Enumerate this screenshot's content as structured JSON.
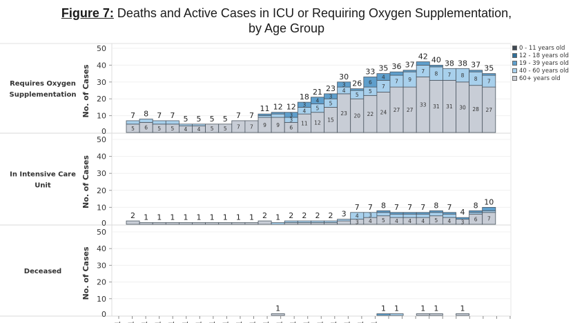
{
  "title": {
    "figure_label": "Figure 7:",
    "text": " Deaths and Active Cases in ICU or Requiring Oxygen Supplementation,",
    "line2": "by Age Group"
  },
  "colors": {
    "0-11": "#3f4a55",
    "12-18": "#2f6e98",
    "19-39": "#5f9fcc",
    "40-60": "#a8d0ec",
    "60+": "#c8cdd6",
    "border": "#4a5560"
  },
  "legend": [
    {
      "key": "0-11",
      "label": "0 - 11 years old"
    },
    {
      "key": "12-18",
      "label": "12 - 18 years old"
    },
    {
      "key": "19-39",
      "label": "19 - 39 years old"
    },
    {
      "key": "40-60",
      "label": "40 - 60 years old"
    },
    {
      "key": "60+",
      "label": "60+ years old"
    }
  ],
  "chart_data": {
    "type": "bar",
    "stacked": true,
    "title": "Figure 7: Deaths and Active Cases in ICU or Requiring Oxygen Supplementation, by Age Group",
    "ylabel": "No. of Cases",
    "ylim": [
      0,
      50
    ],
    "yticks": [
      0,
      10,
      20,
      30,
      40,
      50
    ],
    "stack_order": [
      "60+",
      "40-60",
      "19-39",
      "12-18",
      "0-11"
    ],
    "x_tick_count": 30,
    "x_tick_labels_visible": "cut off at bottom edge (dates partially visible)",
    "panels": [
      {
        "name": "Requires Oxygen Supplementation",
        "totals": [
          7,
          8,
          7,
          7,
          5,
          5,
          5,
          5,
          7,
          7,
          11,
          12,
          12,
          18,
          21,
          23,
          30,
          26,
          33,
          35,
          36,
          37,
          42,
          40,
          38,
          38,
          37,
          35
        ],
        "series": [
          {
            "name": "60+ years old",
            "key": "60+",
            "values": [
              5,
              6,
              5,
              5,
              4,
              4,
              5,
              5,
              7,
              7,
              9,
              9,
              6,
              11,
              12,
              15,
              23,
              20,
              22,
              24,
              27,
              27,
              33,
              31,
              31,
              30,
              28,
              27
            ]
          },
          {
            "name": "40 - 60 years old",
            "key": "40-60",
            "values": [
              2,
              2,
              2,
              2,
              1,
              1,
              0,
              0,
              0,
              0,
              1,
              2,
              3,
              4,
              5,
              5,
              4,
              5,
              5,
              7,
              7,
              9,
              7,
              8,
              7,
              8,
              8,
              7
            ]
          },
          {
            "name": "19 - 39 years old",
            "key": "19-39",
            "values": [
              0,
              0,
              0,
              0,
              0,
              0,
              0,
              0,
              0,
              0,
              1,
              1,
              3,
              3,
              4,
              3,
              3,
              1,
              6,
              4,
              2,
              1,
              2,
              1,
              0,
              0,
              1,
              1
            ]
          },
          {
            "name": "12 - 18 years old",
            "key": "12-18",
            "values": [
              0,
              0,
              0,
              0,
              0,
              0,
              0,
              0,
              0,
              0,
              0,
              0,
              0,
              0,
              0,
              0,
              0,
              0,
              0,
              0,
              0,
              0,
              0,
              0,
              0,
              0,
              0,
              0
            ]
          },
          {
            "name": "0 - 11 years old",
            "key": "0-11",
            "values": [
              0,
              0,
              0,
              0,
              0,
              0,
              0,
              0,
              0,
              0,
              0,
              0,
              0,
              0,
              0,
              0,
              0,
              0,
              0,
              0,
              0,
              0,
              0,
              0,
              0,
              0,
              0,
              0
            ]
          }
        ]
      },
      {
        "name": "In Intensive Care Unit",
        "totals": [
          2,
          1,
          1,
          1,
          1,
          1,
          1,
          1,
          1,
          1,
          2,
          1,
          2,
          2,
          2,
          2,
          3,
          7,
          7,
          8,
          7,
          7,
          7,
          8,
          7,
          4,
          8,
          10
        ],
        "series": [
          {
            "name": "60+ years old",
            "key": "60+",
            "values": [
              2,
              1,
              1,
              1,
              1,
              1,
              1,
              1,
              1,
              1,
              2,
              0,
              1,
              1,
              1,
              1,
              2,
              3,
              4,
              5,
              4,
              4,
              4,
              5,
              4,
              3,
              6,
              7
            ]
          },
          {
            "name": "40 - 60 years old",
            "key": "40-60",
            "values": [
              0,
              0,
              0,
              0,
              0,
              0,
              0,
              0,
              0,
              0,
              0,
              1,
              1,
              1,
              1,
              1,
              1,
              4,
              3,
              2,
              2,
              2,
              2,
              2,
              2,
              0,
              1,
              1
            ]
          },
          {
            "name": "19 - 39 years old",
            "key": "19-39",
            "values": [
              0,
              0,
              0,
              0,
              0,
              0,
              0,
              0,
              0,
              0,
              0,
              0,
              0,
              0,
              0,
              0,
              0,
              0,
              0,
              1,
              1,
              1,
              1,
              1,
              1,
              1,
              1,
              2
            ]
          },
          {
            "name": "12 - 18 years old",
            "key": "12-18",
            "values": [
              0,
              0,
              0,
              0,
              0,
              0,
              0,
              0,
              0,
              0,
              0,
              0,
              0,
              0,
              0,
              0,
              0,
              0,
              0,
              0,
              0,
              0,
              0,
              0,
              0,
              0,
              0,
              0
            ]
          },
          {
            "name": "0 - 11 years old",
            "key": "0-11",
            "values": [
              0,
              0,
              0,
              0,
              0,
              0,
              0,
              0,
              0,
              0,
              0,
              0,
              0,
              0,
              0,
              0,
              0,
              0,
              0,
              0,
              0,
              0,
              0,
              0,
              0,
              0,
              0,
              0
            ]
          }
        ]
      },
      {
        "name": "Deceased",
        "totals": [
          0,
          0,
          0,
          0,
          0,
          0,
          0,
          0,
          0,
          0,
          0,
          1,
          0,
          0,
          0,
          0,
          0,
          0,
          0,
          1,
          1,
          0,
          1,
          1,
          0,
          1,
          0,
          0
        ],
        "series": [
          {
            "name": "60+ years old",
            "key": "60+",
            "values": [
              0,
              0,
              0,
              0,
              0,
              0,
              0,
              0,
              0,
              0,
              0,
              1,
              0,
              0,
              0,
              0,
              0,
              0,
              0,
              0,
              0,
              0,
              1,
              1,
              0,
              1,
              0,
              0
            ]
          },
          {
            "name": "40 - 60 years old",
            "key": "40-60",
            "values": [
              0,
              0,
              0,
              0,
              0,
              0,
              0,
              0,
              0,
              0,
              0,
              0,
              0,
              0,
              0,
              0,
              0,
              0,
              0,
              0,
              1,
              0,
              0,
              0,
              0,
              0,
              0,
              0
            ]
          },
          {
            "name": "19 - 39 years old",
            "key": "19-39",
            "values": [
              0,
              0,
              0,
              0,
              0,
              0,
              0,
              0,
              0,
              0,
              0,
              0,
              0,
              0,
              0,
              0,
              0,
              0,
              0,
              1,
              0,
              0,
              0,
              0,
              0,
              0,
              0,
              0
            ]
          },
          {
            "name": "12 - 18 years old",
            "key": "12-18",
            "values": [
              0,
              0,
              0,
              0,
              0,
              0,
              0,
              0,
              0,
              0,
              0,
              0,
              0,
              0,
              0,
              0,
              0,
              0,
              0,
              0,
              0,
              0,
              0,
              0,
              0,
              0,
              0,
              0
            ]
          },
          {
            "name": "0 - 11 years old",
            "key": "0-11",
            "values": [
              0,
              0,
              0,
              0,
              0,
              0,
              0,
              0,
              0,
              0,
              0,
              0,
              0,
              0,
              0,
              0,
              0,
              0,
              0,
              0,
              0,
              0,
              0,
              0,
              0,
              0,
              0,
              0
            ]
          }
        ]
      }
    ],
    "panel_labels": [
      "Requires Oxygen Supplementation",
      "In Intensive Care Unit",
      "Deceased"
    ]
  }
}
